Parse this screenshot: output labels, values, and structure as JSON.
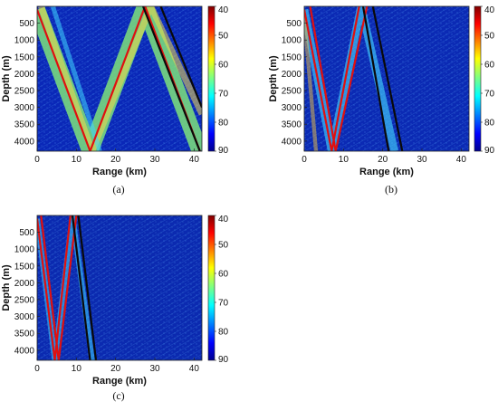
{
  "chart_data": [
    {
      "type": "heatmap",
      "caption": "(a)",
      "xlabel": "Range (km)",
      "ylabel": "Depth (m)",
      "xlim": [
        0,
        42
      ],
      "ylim": [
        4300,
        0
      ],
      "xticks": [
        0,
        10,
        20,
        30,
        40
      ],
      "yticks": [
        500,
        1000,
        1500,
        2000,
        2500,
        3000,
        3500,
        4000
      ],
      "colorbar": {
        "ticks": [
          40,
          50,
          60,
          70,
          80,
          90
        ],
        "range": [
          40,
          90
        ],
        "colormap": "jet"
      },
      "background": "#0a28b8",
      "red_ray": [
        [
          0,
          100
        ],
        [
          13.5,
          4300
        ],
        [
          27.5,
          0
        ],
        [
          41.5,
          4300
        ]
      ],
      "black_ray": [
        [
          27,
          0
        ],
        [
          41.5,
          4300
        ]
      ],
      "black_ray_2": [
        [
          31.5,
          0
        ],
        [
          42,
          3000
        ]
      ],
      "beams": [
        {
          "path": [
            [
              0,
              100
            ],
            [
              13.5,
              4300
            ],
            [
              27.5,
              0
            ],
            [
              41.5,
              4300
            ]
          ],
          "color": "#7ee27a",
          "width_km": 4.2,
          "opacity": 0.85
        },
        {
          "path": [
            [
              1,
              0
            ],
            [
              14,
              4300
            ],
            [
              29,
              0
            ],
            [
              42,
              3200
            ]
          ],
          "color": "#f2d84a",
          "width_km": 1.6,
          "opacity": 0.55
        },
        {
          "path": [
            [
              4,
              0
            ],
            [
              16,
              4300
            ]
          ],
          "color": "#3fd3ff",
          "width_km": 1.2,
          "opacity": 0.55
        }
      ]
    },
    {
      "type": "heatmap",
      "caption": "(b)",
      "xlabel": "Range (km)",
      "ylabel": "Depth (m)",
      "xlim": [
        0,
        42
      ],
      "ylim": [
        4300,
        0
      ],
      "xticks": [
        0,
        10,
        20,
        30,
        40
      ],
      "yticks": [
        500,
        1000,
        1500,
        2000,
        2500,
        3000,
        3500,
        4000
      ],
      "colorbar": {
        "ticks": [
          40,
          50,
          60,
          70,
          80,
          90
        ],
        "range": [
          40,
          90
        ],
        "colormap": "jet"
      },
      "background": "#0b2ab4",
      "red_ray": [
        [
          0,
          100
        ],
        [
          7,
          4300
        ],
        [
          14,
          0
        ]
      ],
      "red_ray_2": [
        [
          1.5,
          0
        ],
        [
          8,
          4300
        ],
        [
          16,
          0
        ]
      ],
      "black_ray": [
        [
          15,
          0
        ],
        [
          21.5,
          4300
        ]
      ],
      "black_ray_2": [
        [
          17.5,
          0
        ],
        [
          25,
          4300
        ]
      ],
      "beams": [
        {
          "path": [
            [
              0,
              100
            ],
            [
              7,
              4300
            ],
            [
              14.5,
              0
            ],
            [
              23,
              4300
            ]
          ],
          "color": "#45d9ff",
          "width_km": 2.0,
          "opacity": 0.6
        },
        {
          "path": [
            [
              0,
              300
            ],
            [
              3,
              4300
            ]
          ],
          "color": "#f0c040",
          "width_km": 1.0,
          "opacity": 0.5
        }
      ]
    },
    {
      "type": "heatmap",
      "caption": "(c)",
      "xlabel": "Range (km)",
      "ylabel": "Depth (m)",
      "xlim": [
        0,
        42
      ],
      "ylim": [
        4300,
        0
      ],
      "xticks": [
        0,
        10,
        20,
        30,
        40
      ],
      "yticks": [
        500,
        1000,
        1500,
        2000,
        2500,
        3000,
        3500,
        4000
      ],
      "colorbar": {
        "ticks": [
          40,
          50,
          60,
          70,
          80,
          90
        ],
        "range": [
          40,
          90
        ],
        "colormap": "jet"
      },
      "background": "#0b2ab0",
      "red_ray": [
        [
          0,
          100
        ],
        [
          4.5,
          4300
        ],
        [
          8.5,
          0
        ]
      ],
      "red_ray_2": [
        [
          1,
          0
        ],
        [
          5.5,
          4300
        ],
        [
          10,
          0
        ]
      ],
      "black_ray": [
        [
          9,
          0
        ],
        [
          13.5,
          4300
        ]
      ],
      "black_ray_2": [
        [
          10.5,
          0
        ],
        [
          15,
          4300
        ]
      ],
      "beams": [
        {
          "path": [
            [
              0,
              100
            ],
            [
              4.5,
              4300
            ],
            [
              9,
              0
            ],
            [
              14,
              4300
            ]
          ],
          "color": "#3ecfff",
          "width_km": 1.4,
          "opacity": 0.55
        }
      ]
    }
  ]
}
